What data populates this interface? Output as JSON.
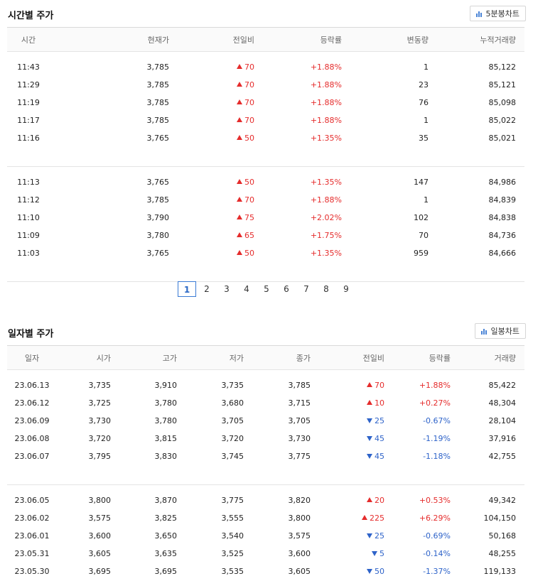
{
  "time_section": {
    "title": "시간별 주가",
    "chart_button": "5분봉차트",
    "columns": [
      "시간",
      "현재가",
      "전일비",
      "등락률",
      "변동량",
      "누적거래량"
    ],
    "groups": [
      [
        {
          "time": "11:43",
          "price": "3,785",
          "diff": "70",
          "dir": "up",
          "rate": "+1.88%",
          "vol": "1",
          "cum": "85,122"
        },
        {
          "time": "11:29",
          "price": "3,785",
          "diff": "70",
          "dir": "up",
          "rate": "+1.88%",
          "vol": "23",
          "cum": "85,121"
        },
        {
          "time": "11:19",
          "price": "3,785",
          "diff": "70",
          "dir": "up",
          "rate": "+1.88%",
          "vol": "76",
          "cum": "85,098"
        },
        {
          "time": "11:17",
          "price": "3,785",
          "diff": "70",
          "dir": "up",
          "rate": "+1.88%",
          "vol": "1",
          "cum": "85,022"
        },
        {
          "time": "11:16",
          "price": "3,765",
          "diff": "50",
          "dir": "up",
          "rate": "+1.35%",
          "vol": "35",
          "cum": "85,021"
        }
      ],
      [
        {
          "time": "11:13",
          "price": "3,765",
          "diff": "50",
          "dir": "up",
          "rate": "+1.35%",
          "vol": "147",
          "cum": "84,986"
        },
        {
          "time": "11:12",
          "price": "3,785",
          "diff": "70",
          "dir": "up",
          "rate": "+1.88%",
          "vol": "1",
          "cum": "84,839"
        },
        {
          "time": "11:10",
          "price": "3,790",
          "diff": "75",
          "dir": "up",
          "rate": "+2.02%",
          "vol": "102",
          "cum": "84,838"
        },
        {
          "time": "11:09",
          "price": "3,780",
          "diff": "65",
          "dir": "up",
          "rate": "+1.75%",
          "vol": "70",
          "cum": "84,736"
        },
        {
          "time": "11:03",
          "price": "3,765",
          "diff": "50",
          "dir": "up",
          "rate": "+1.35%",
          "vol": "959",
          "cum": "84,666"
        }
      ]
    ],
    "pagination": {
      "pages": [
        "1",
        "2",
        "3",
        "4",
        "5",
        "6",
        "7",
        "8",
        "9"
      ],
      "active": "1"
    }
  },
  "daily_section": {
    "title": "일자별 주가",
    "chart_button": "일봉차트",
    "columns": [
      "일자",
      "시가",
      "고가",
      "저가",
      "종가",
      "전일비",
      "등락률",
      "거래량"
    ],
    "groups": [
      [
        {
          "date": "23.06.13",
          "open": "3,735",
          "high": "3,910",
          "low": "3,735",
          "close": "3,785",
          "diff": "70",
          "dir": "up",
          "rate": "+1.88%",
          "vol": "85,422"
        },
        {
          "date": "23.06.12",
          "open": "3,725",
          "high": "3,780",
          "low": "3,680",
          "close": "3,715",
          "diff": "10",
          "dir": "up",
          "rate": "+0.27%",
          "vol": "48,304"
        },
        {
          "date": "23.06.09",
          "open": "3,730",
          "high": "3,780",
          "low": "3,705",
          "close": "3,705",
          "diff": "25",
          "dir": "down",
          "rate": "-0.67%",
          "vol": "28,104"
        },
        {
          "date": "23.06.08",
          "open": "3,720",
          "high": "3,815",
          "low": "3,720",
          "close": "3,730",
          "diff": "45",
          "dir": "down",
          "rate": "-1.19%",
          "vol": "37,916"
        },
        {
          "date": "23.06.07",
          "open": "3,795",
          "high": "3,830",
          "low": "3,745",
          "close": "3,775",
          "diff": "45",
          "dir": "down",
          "rate": "-1.18%",
          "vol": "42,755"
        }
      ],
      [
        {
          "date": "23.06.05",
          "open": "3,800",
          "high": "3,870",
          "low": "3,775",
          "close": "3,820",
          "diff": "20",
          "dir": "up",
          "rate": "+0.53%",
          "vol": "49,342"
        },
        {
          "date": "23.06.02",
          "open": "3,575",
          "high": "3,825",
          "low": "3,555",
          "close": "3,800",
          "diff": "225",
          "dir": "up",
          "rate": "+6.29%",
          "vol": "104,150"
        },
        {
          "date": "23.06.01",
          "open": "3,600",
          "high": "3,650",
          "low": "3,540",
          "close": "3,575",
          "diff": "25",
          "dir": "down",
          "rate": "-0.69%",
          "vol": "50,168"
        },
        {
          "date": "23.05.31",
          "open": "3,605",
          "high": "3,635",
          "low": "3,525",
          "close": "3,600",
          "diff": "5",
          "dir": "down",
          "rate": "-0.14%",
          "vol": "48,255"
        },
        {
          "date": "23.05.30",
          "open": "3,695",
          "high": "3,695",
          "low": "3,535",
          "close": "3,605",
          "diff": "50",
          "dir": "down",
          "rate": "-1.37%",
          "vol": "119,133"
        }
      ]
    ]
  },
  "colors": {
    "up": "#e52c2c",
    "down": "#2e63c9",
    "active_page": "#3a7bd5"
  }
}
